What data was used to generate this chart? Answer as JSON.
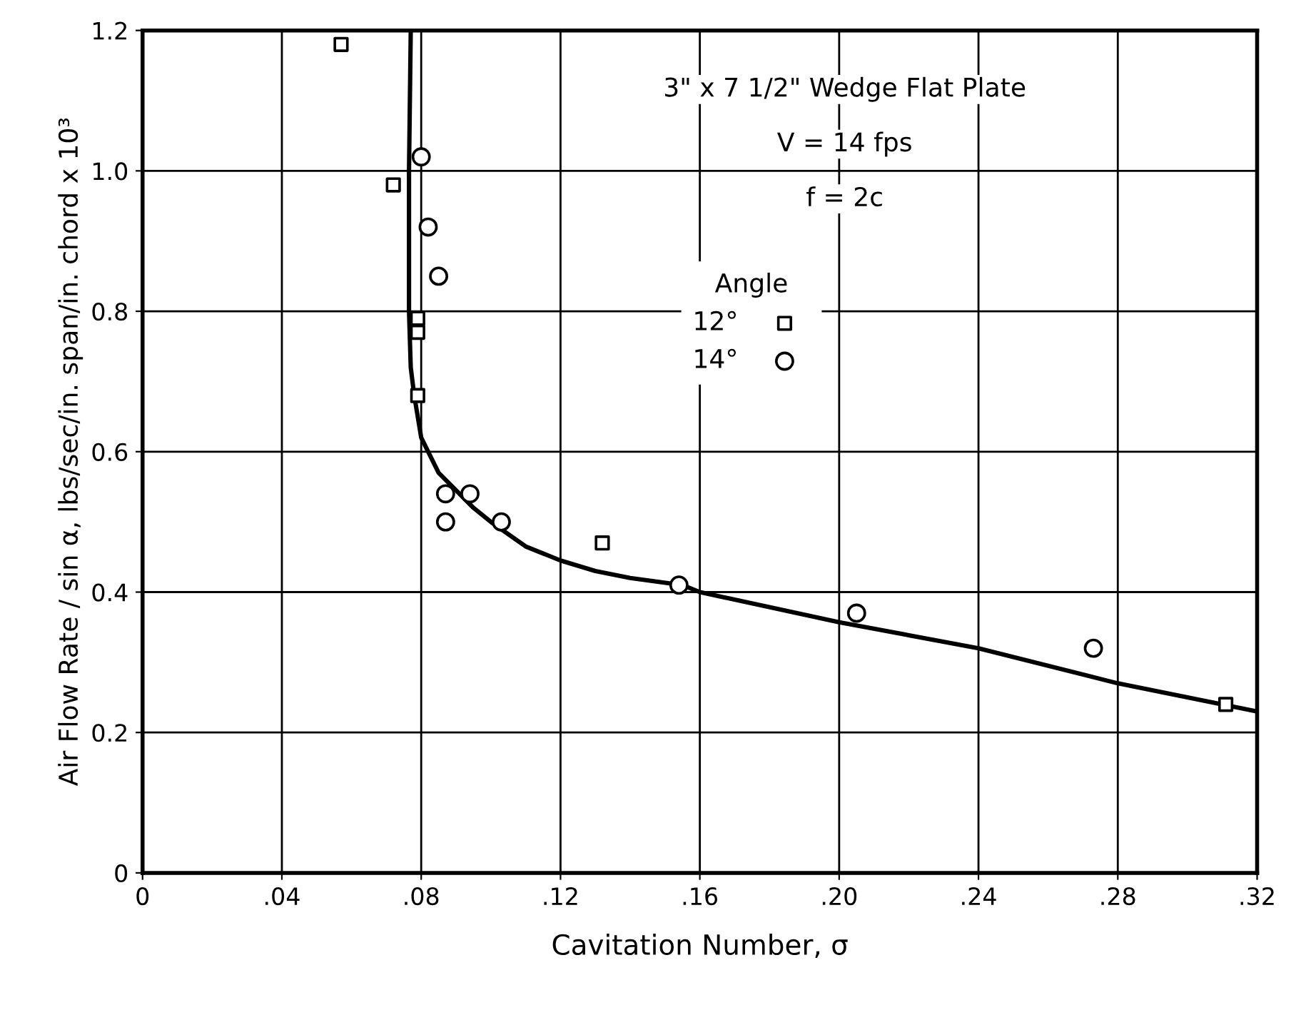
{
  "chart_data": {
    "type": "scatter",
    "xlabel": "Cavitation Number, σ",
    "ylabel": "Air Flow Rate / sin α, lbs/sec/in. span/in. chord x 10³",
    "legend_title": "Angle",
    "annotations": [
      "3\" x 7 1/2\" Wedge Flat Plate",
      "V = 14 fps",
      "f = 2c"
    ],
    "xlim": [
      0,
      0.32
    ],
    "ylim": [
      0,
      1.2
    ],
    "xticks": [
      {
        "value": 0,
        "label": "0"
      },
      {
        "value": 0.04,
        "label": ".04"
      },
      {
        "value": 0.08,
        "label": ".08"
      },
      {
        "value": 0.12,
        "label": ".12"
      },
      {
        "value": 0.16,
        "label": ".16"
      },
      {
        "value": 0.2,
        "label": ".20"
      },
      {
        "value": 0.24,
        "label": ".24"
      },
      {
        "value": 0.28,
        "label": ".28"
      },
      {
        "value": 0.32,
        "label": ".32"
      }
    ],
    "yticks": [
      0,
      0.2,
      0.4,
      0.6,
      0.8,
      {
        "value": 1.0,
        "label": "1.0"
      },
      1.2
    ],
    "grid": true,
    "legend": "top right",
    "series": [
      {
        "name": "12°",
        "marker": "square",
        "color": "#000000",
        "x": [
          0.057,
          0.072,
          0.079,
          0.079,
          0.079,
          0.132,
          0.311
        ],
        "values": [
          1.18,
          0.98,
          0.79,
          0.77,
          0.68,
          0.47,
          0.24
        ]
      },
      {
        "name": "14°",
        "marker": "circle",
        "color": "#000000",
        "x": [
          0.08,
          0.082,
          0.085,
          0.087,
          0.087,
          0.094,
          0.103,
          0.154,
          0.205,
          0.273
        ],
        "values": [
          1.02,
          0.92,
          0.85,
          0.54,
          0.5,
          0.54,
          0.5,
          0.41,
          0.37,
          0.32
        ]
      },
      {
        "type": "line",
        "marker": "none",
        "line_style": "solid",
        "color": "#000000",
        "x": [
          0.077,
          0.0765,
          0.0765,
          0.077,
          0.078,
          0.08,
          0.085,
          0.09,
          0.095,
          0.1,
          0.11,
          0.12,
          0.13,
          0.14,
          0.155,
          0.16,
          0.2,
          0.24,
          0.28,
          0.32
        ],
        "values": [
          1.2,
          1.0,
          0.8,
          0.72,
          0.68,
          0.62,
          0.57,
          0.545,
          0.52,
          0.5,
          0.465,
          0.445,
          0.43,
          0.42,
          0.41,
          0.4,
          0.357,
          0.32,
          0.27,
          0.23
        ]
      }
    ]
  }
}
